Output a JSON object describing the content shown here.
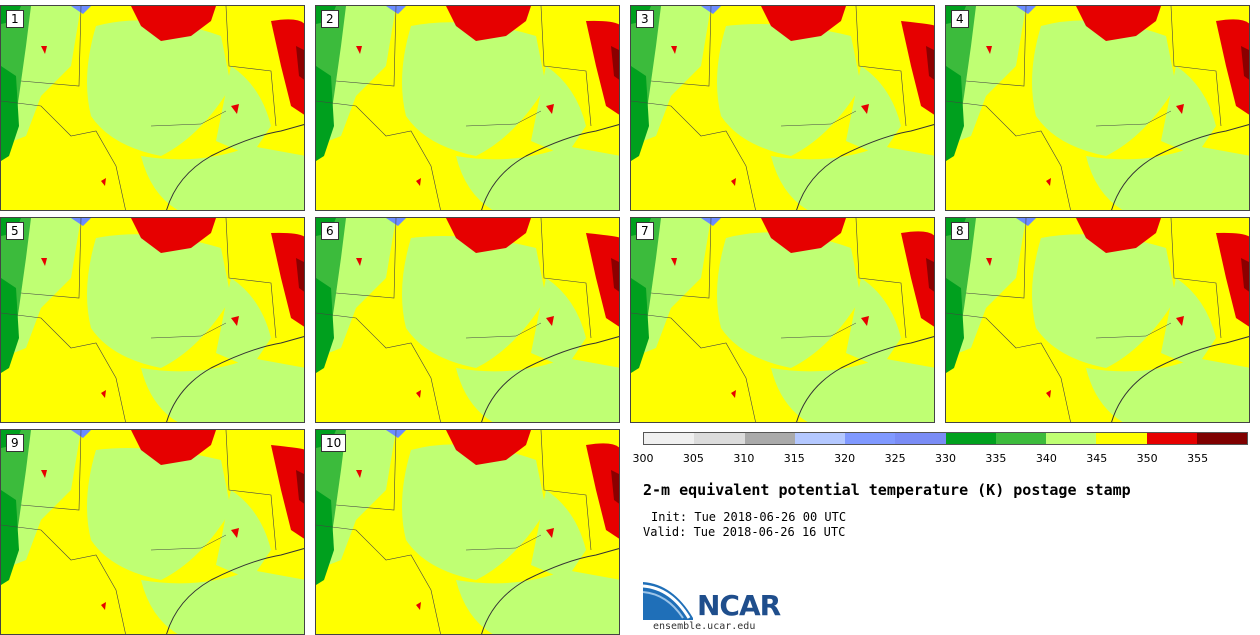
{
  "panels": [
    {
      "label": "1"
    },
    {
      "label": "2"
    },
    {
      "label": "3"
    },
    {
      "label": "4"
    },
    {
      "label": "5"
    },
    {
      "label": "6"
    },
    {
      "label": "7"
    },
    {
      "label": "8"
    },
    {
      "label": "9"
    },
    {
      "label": "10"
    }
  ],
  "colorbar": {
    "colors": [
      "#f0f0f0",
      "#dcdcdc",
      "#aaaaaa",
      "#b4c8ff",
      "#8099ff",
      "#7a8cf5",
      "#00a01e",
      "#3cbb3c",
      "#bfff73",
      "#ffff00",
      "#e60000",
      "#7f0000"
    ],
    "ticks": [
      "300",
      "305",
      "310",
      "315",
      "320",
      "325",
      "330",
      "335",
      "340",
      "345",
      "350",
      "355"
    ]
  },
  "title": "2-m equivalent potential temperature (K) postage stamp",
  "init": "Init: Tue 2018-06-26 00 UTC",
  "valid": "Valid: Tue 2018-06-26 16 UTC",
  "logo_text": "NCAR",
  "url": "ensemble.ucar.edu",
  "map_colors": {
    "light_green": "#bfff73",
    "yellow": "#ffff00",
    "red": "#e60000",
    "dark_red": "#8b0000",
    "green": "#00a01e",
    "mid_green": "#3cbb3c",
    "blue": "#6b8cff"
  }
}
